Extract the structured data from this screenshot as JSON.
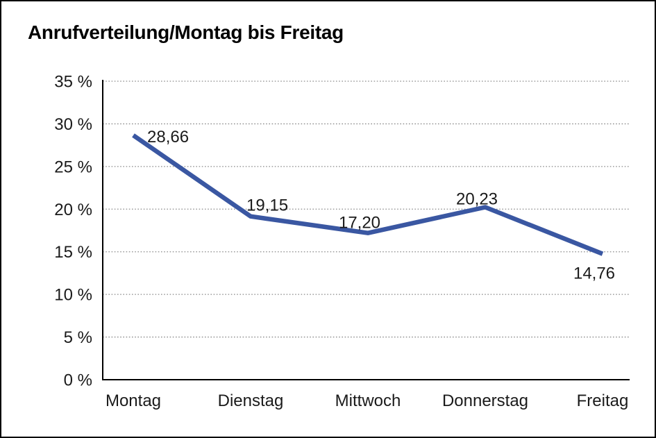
{
  "chart_data": {
    "type": "line",
    "title": "Anrufverteilung/Montag bis Freitag",
    "categories": [
      "Montag",
      "Dienstag",
      "Mittwoch",
      "Donnerstag",
      "Freitag"
    ],
    "values": [
      28.66,
      19.15,
      17.2,
      20.23,
      14.76
    ],
    "data_labels": [
      "28,66",
      "19,15",
      "17,20",
      "20,23",
      "14,76"
    ],
    "xlabel": "",
    "ylabel": "",
    "ylim": [
      0,
      35
    ],
    "ytick_step": 5,
    "ytick_labels": [
      "0 %",
      "5 %",
      "10 %",
      "15 %",
      "20 %",
      "25 %",
      "30 %",
      "35 %"
    ],
    "grid": "horizontal-dotted",
    "legend": "none",
    "line_color": "#3A57A2",
    "axis_color": "#000000",
    "gridline_color": "#8a8a8a"
  }
}
